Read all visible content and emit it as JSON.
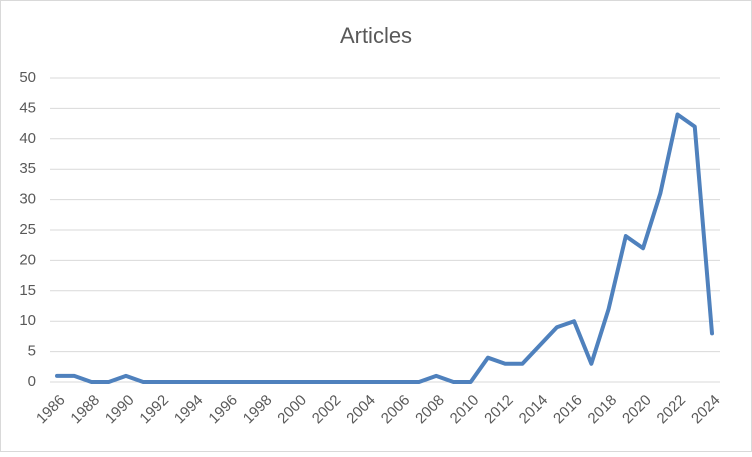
{
  "chart_data": {
    "type": "line",
    "title": "Articles",
    "x": [
      1986,
      1987,
      1988,
      1989,
      1990,
      1991,
      1992,
      1993,
      1994,
      1995,
      1996,
      1997,
      1998,
      1999,
      2000,
      2001,
      2002,
      2003,
      2004,
      2005,
      2006,
      2007,
      2008,
      2009,
      2010,
      2011,
      2012,
      2013,
      2014,
      2015,
      2016,
      2017,
      2018,
      2019,
      2020,
      2021,
      2022,
      2023,
      2024
    ],
    "series": [
      {
        "name": "Articles",
        "color": "#4f81bd",
        "values": [
          1,
          1,
          0,
          0,
          1,
          0,
          0,
          0,
          0,
          0,
          0,
          0,
          0,
          0,
          0,
          0,
          0,
          0,
          0,
          0,
          0,
          0,
          1,
          0,
          0,
          4,
          3,
          3,
          6,
          9,
          10,
          3,
          12,
          24,
          22,
          31,
          44,
          42,
          8
        ]
      }
    ],
    "xlim": [
      1986,
      2024
    ],
    "xticks": [
      1986,
      1988,
      1990,
      1992,
      1994,
      1996,
      1998,
      2000,
      2002,
      2004,
      2006,
      2008,
      2010,
      2012,
      2014,
      2016,
      2018,
      2020,
      2022,
      2024
    ],
    "ylim": [
      0,
      50
    ],
    "yticks": [
      0,
      5,
      10,
      15,
      20,
      25,
      30,
      35,
      40,
      45,
      50
    ],
    "grid": true
  }
}
